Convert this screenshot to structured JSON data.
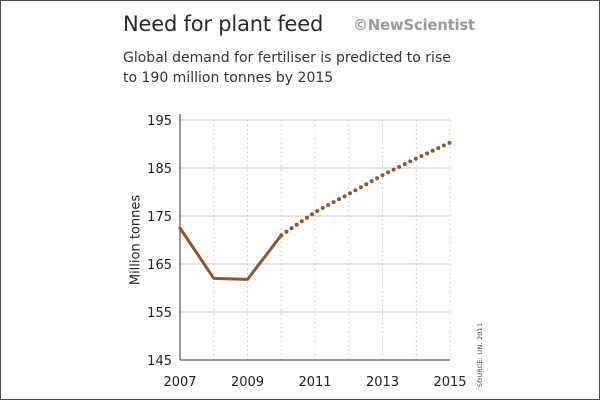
{
  "header": {
    "title": "Need for plant feed",
    "brand": "©NewScientist",
    "subtitle": "Global demand for fertiliser is predicted to rise to 190 million tonnes by 2015"
  },
  "source_note": "SOURCE: UN, 2011",
  "colors": {
    "line": "#8a5a2e",
    "grid": "#c8c8c8",
    "axis": "#555555"
  },
  "chart_data": {
    "type": "line",
    "title": "Need for plant feed",
    "ylabel": "Million tonnes",
    "xlabel": "",
    "xlim": [
      2007,
      2015
    ],
    "ylim": [
      145,
      195
    ],
    "x_ticks": [
      2007,
      2009,
      2011,
      2013,
      2015
    ],
    "x_gridlines": [
      2007,
      2008,
      2009,
      2010,
      2011,
      2012,
      2013,
      2014,
      2015
    ],
    "y_ticks": [
      145,
      155,
      165,
      175,
      185,
      195
    ],
    "grid": {
      "x": "dotted",
      "y": "solid"
    },
    "series": [
      {
        "style": "solid",
        "x": [
          2007,
          2008,
          2009,
          2010
        ],
        "values": [
          172.5,
          162,
          161.8,
          171
        ]
      },
      {
        "style": "dotted",
        "x": [
          2010,
          2011,
          2012,
          2013,
          2014,
          2015
        ],
        "values": [
          171,
          175.8,
          179.6,
          183.5,
          187,
          190.3
        ]
      }
    ]
  }
}
